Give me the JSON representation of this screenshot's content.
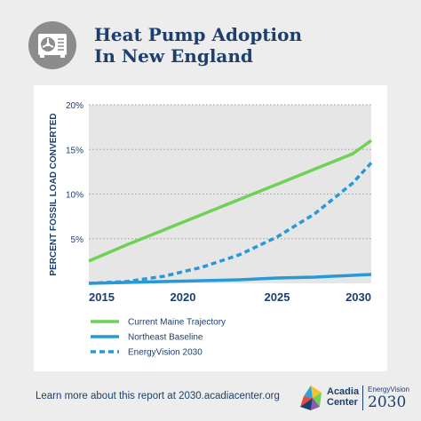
{
  "header": {
    "icon": "heat-pump-unit-icon",
    "title_line1": "Heat Pump Adoption",
    "title_line2": "In New England"
  },
  "chart_data": {
    "type": "line",
    "title": "",
    "xlabel": "",
    "ylabel": "PERCENT FOSSIL LOAD CONVERTED",
    "x": [
      2015,
      2017,
      2019,
      2021,
      2023,
      2025,
      2027,
      2029,
      2030
    ],
    "xlim": [
      2015,
      2030
    ],
    "ylim": [
      0,
      20
    ],
    "xticks": [
      "2015",
      "2020",
      "2025",
      "2030"
    ],
    "yticks": [
      "5%",
      "10%",
      "15%",
      "20%"
    ],
    "grid": "dotted horizontal",
    "legend_position": "bottom",
    "series": [
      {
        "name": "Current Maine Trajectory",
        "color": "#6fd255",
        "style": "solid",
        "values": [
          2.5,
          4.3,
          6.0,
          7.7,
          9.4,
          11.1,
          12.8,
          14.5,
          16.0
        ]
      },
      {
        "name": "Northeast Baseline",
        "color": "#2799d6",
        "style": "solid",
        "values": [
          0.0,
          0.1,
          0.2,
          0.3,
          0.4,
          0.6,
          0.7,
          0.9,
          1.0
        ]
      },
      {
        "name": "EnergyVision 2030",
        "color": "#2799d6",
        "style": "dashed",
        "values": [
          0.0,
          0.2,
          0.8,
          1.8,
          3.2,
          5.2,
          7.8,
          11.2,
          13.5
        ]
      }
    ]
  },
  "footer": {
    "text": "Learn more about this report at 2030.acadiacenter.org"
  },
  "logo": {
    "org_line1": "Acadia",
    "org_line2": "Center",
    "program": "EnergyVision",
    "year": "2030"
  }
}
